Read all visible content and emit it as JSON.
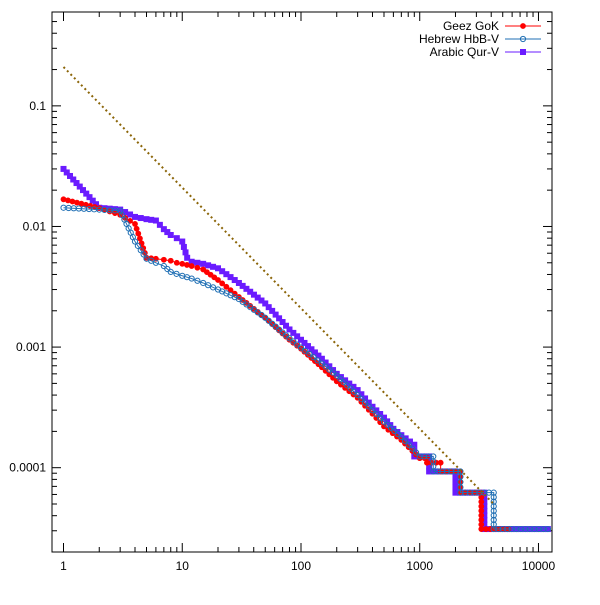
{
  "chart_data": {
    "type": "line",
    "title": "",
    "xlabel": "",
    "ylabel": "",
    "x_scale": "log",
    "y_scale": "log",
    "xlim": [
      0.8,
      13000
    ],
    "ylim": [
      2e-05,
      0.6
    ],
    "grid": false,
    "legend_position": "top-right",
    "x_ticks": [
      {
        "value": 1,
        "label": "1"
      },
      {
        "value": 10,
        "label": "10"
      },
      {
        "value": 100,
        "label": "100"
      },
      {
        "value": 1000,
        "label": "1000"
      },
      {
        "value": 10000,
        "label": "10000"
      }
    ],
    "y_ticks": [
      {
        "value": 0.0001,
        "label": "0.0001"
      },
      {
        "value": 0.001,
        "label": "0.001"
      },
      {
        "value": 0.01,
        "label": "0.01"
      },
      {
        "value": 0.1,
        "label": "0.1"
      }
    ],
    "series": [
      {
        "name": "Geez GoK",
        "color": "#ff0000",
        "marker": "filled-circle",
        "points": [
          [
            1,
            0.0168
          ],
          [
            2,
            0.0142
          ],
          [
            3,
            0.0125
          ],
          [
            4,
            0.0105
          ],
          [
            5,
            0.0055
          ],
          [
            6,
            0.0054
          ],
          [
            7,
            0.0053
          ],
          [
            8,
            0.0052
          ],
          [
            9,
            0.005
          ],
          [
            10,
            0.0049
          ],
          [
            12,
            0.0047
          ],
          [
            15,
            0.0044
          ],
          [
            20,
            0.0036
          ],
          [
            30,
            0.0026
          ],
          [
            50,
            0.00175
          ],
          [
            80,
            0.00115
          ],
          [
            100,
            0.00097
          ],
          [
            150,
            0.00068
          ],
          [
            200,
            0.00052
          ],
          [
            300,
            0.00038
          ],
          [
            400,
            0.00028
          ],
          [
            500,
            0.00022
          ],
          [
            700,
            0.00017
          ],
          [
            1000,
            0.00012
          ],
          [
            1100,
            0.00012
          ],
          [
            1150,
            0.000121
          ],
          [
            1150,
            0.00011
          ],
          [
            1500,
            0.00011
          ],
          [
            1500,
            9.31e-05
          ],
          [
            2200,
            9.31e-05
          ],
          [
            2200,
            6.21e-05
          ],
          [
            3300,
            6.21e-05
          ],
          [
            3300,
            3.1e-05
          ],
          [
            5600,
            3.1e-05
          ]
        ]
      },
      {
        "name": "Hebrew HbB-V",
        "color": "#1f6fb4",
        "marker": "open-circle",
        "points": [
          [
            1,
            0.0143
          ],
          [
            2,
            0.0138
          ],
          [
            3,
            0.0135
          ],
          [
            4,
            0.0075
          ],
          [
            5,
            0.0054
          ],
          [
            6,
            0.005
          ],
          [
            7,
            0.0047
          ],
          [
            8,
            0.0042
          ],
          [
            10,
            0.0039
          ],
          [
            12,
            0.0037
          ],
          [
            15,
            0.0034
          ],
          [
            20,
            0.003
          ],
          [
            30,
            0.0025
          ],
          [
            50,
            0.00175
          ],
          [
            80,
            0.00118
          ],
          [
            100,
            0.00099
          ],
          [
            150,
            0.00073
          ],
          [
            200,
            0.00058
          ],
          [
            300,
            0.0004
          ],
          [
            400,
            0.0003
          ],
          [
            500,
            0.00024
          ],
          [
            700,
            0.00018
          ],
          [
            1000,
            0.000124
          ],
          [
            1300,
            0.000124
          ],
          [
            1300,
            9.31e-05
          ],
          [
            2200,
            9.31e-05
          ],
          [
            2200,
            6.21e-05
          ],
          [
            4200,
            6.21e-05
          ],
          [
            4200,
            3.1e-05
          ],
          [
            12000,
            3.1e-05
          ]
        ]
      },
      {
        "name": "Arabic Qur-V",
        "color": "#6a1bff",
        "marker": "filled-square",
        "points": [
          [
            1,
            0.03
          ],
          [
            2,
            0.0143
          ],
          [
            3,
            0.0138
          ],
          [
            4,
            0.012
          ],
          [
            5,
            0.0115
          ],
          [
            6,
            0.0112
          ],
          [
            7,
            0.0095
          ],
          [
            8,
            0.0085
          ],
          [
            9,
            0.008
          ],
          [
            10,
            0.0075
          ],
          [
            11,
            0.0055
          ],
          [
            12,
            0.0051
          ],
          [
            15,
            0.0049
          ],
          [
            20,
            0.0045
          ],
          [
            30,
            0.0034
          ],
          [
            50,
            0.0023
          ],
          [
            80,
            0.0014
          ],
          [
            100,
            0.00115
          ],
          [
            150,
            0.0008
          ],
          [
            200,
            0.0006
          ],
          [
            300,
            0.00044
          ],
          [
            400,
            0.00032
          ],
          [
            500,
            0.00026
          ],
          [
            600,
            0.00021
          ],
          [
            700,
            0.000186
          ],
          [
            900,
            0.000155
          ],
          [
            900,
            0.000124
          ],
          [
            1200,
            0.000124
          ],
          [
            1200,
            9.31e-05
          ],
          [
            2000,
            9.31e-05
          ],
          [
            2000,
            6.21e-05
          ],
          [
            3500,
            6.21e-05
          ],
          [
            3500,
            3.1e-05
          ],
          [
            12000,
            3.1e-05
          ]
        ]
      },
      {
        "name": "",
        "color": "#8b6508",
        "marker": "none",
        "dash": "dotted",
        "points": [
          [
            1,
            0.21
          ],
          [
            4200,
            5e-05
          ]
        ]
      }
    ]
  }
}
